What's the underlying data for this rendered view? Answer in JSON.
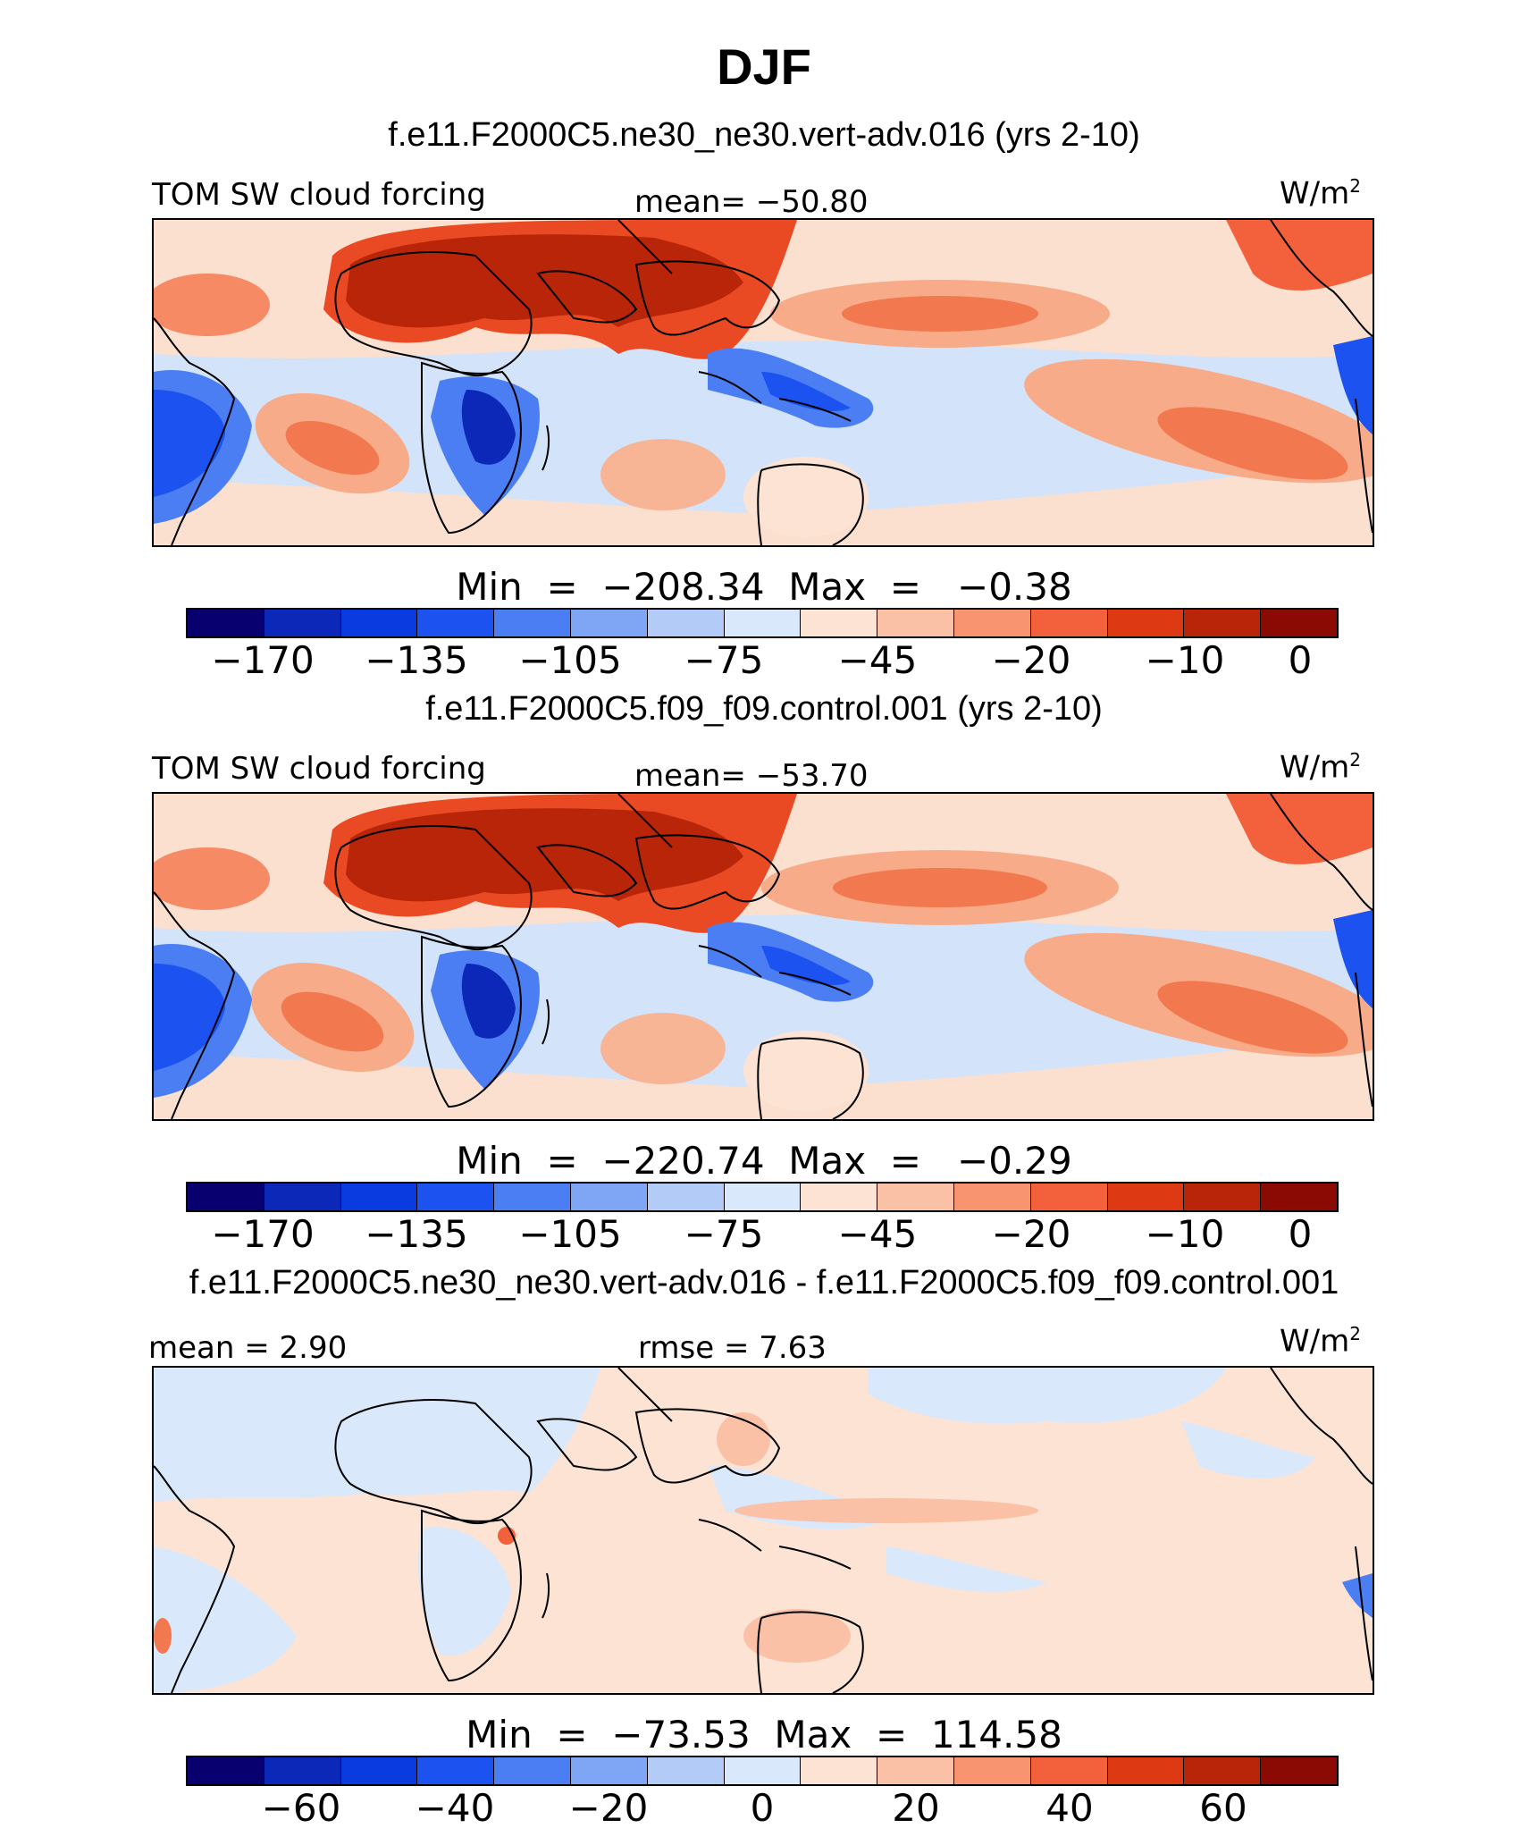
{
  "figure": {
    "season": "DJF"
  },
  "panels": [
    {
      "case_title": "f.e11.F2000C5.ne30_ne30.vert-adv.016 (yrs 2-10)",
      "left_label": "TOM SW cloud forcing",
      "center_label": "mean=  −50.80",
      "units": "W/m",
      "units_sup": "2",
      "minmax": "Min  =  −208.34  Max  =   −0.38",
      "colorbar_ticks": [
        "−170",
        "−135",
        "−105",
        "−75",
        "−45",
        "−20",
        "−10",
        "0"
      ]
    },
    {
      "case_title": "f.e11.F2000C5.f09_f09.control.001 (yrs 2-10)",
      "left_label": "TOM SW cloud forcing",
      "center_label": "mean=  −53.70",
      "units": "W/m",
      "units_sup": "2",
      "minmax": "Min  =  −220.74  Max  =   −0.29",
      "colorbar_ticks": [
        "−170",
        "−135",
        "−105",
        "−75",
        "−45",
        "−20",
        "−10",
        "0"
      ]
    },
    {
      "case_title": "f.e11.F2000C5.ne30_ne30.vert-adv.016 - f.e11.F2000C5.f09_f09.control.001",
      "left_label": "mean =    2.90",
      "center_label": "rmse  =    7.63",
      "units": "W/m",
      "units_sup": "2",
      "minmax": "Min  =  −73.53  Max  =  114.58",
      "colorbar_ticks": [
        "−60",
        "−40",
        "−20",
        "0",
        "20",
        "40",
        "60"
      ]
    }
  ],
  "colorbar_colors": [
    "#08006e",
    "#0b28b8",
    "#0a3be0",
    "#1b52f0",
    "#4b7ef2",
    "#7fa6f4",
    "#b3cbf7",
    "#d9e8fb",
    "#fde3d3",
    "#fbc1a6",
    "#f8946f",
    "#f2613b",
    "#dd3a14",
    "#b82508",
    "#8c0a04"
  ]
}
